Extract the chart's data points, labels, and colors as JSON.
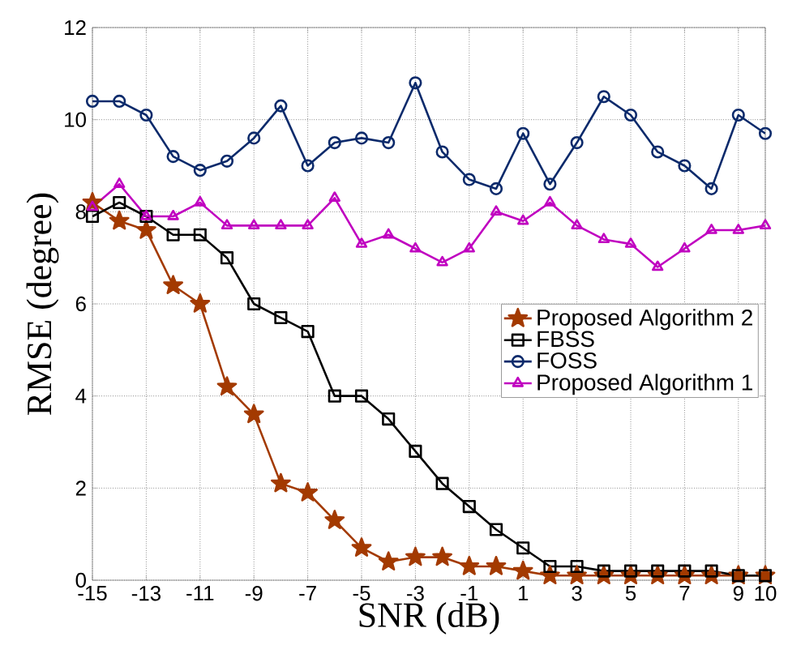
{
  "chart_data": {
    "type": "line",
    "xlabel": "SNR (dB)",
    "ylabel": "RMSE (degree)",
    "x": [
      -15,
      -14,
      -13,
      -12,
      -11,
      -10,
      -9,
      -8,
      -7,
      -6,
      -5,
      -4,
      -3,
      -2,
      -1,
      0,
      1,
      2,
      3,
      4,
      5,
      6,
      7,
      8,
      9,
      10
    ],
    "series": [
      {
        "name": "Proposed  Algorithm 2",
        "color": "#a33a00",
        "marker": "star",
        "values": [
          8.2,
          7.8,
          7.6,
          6.4,
          6.0,
          4.2,
          3.6,
          2.1,
          1.9,
          1.3,
          0.7,
          0.4,
          0.5,
          0.5,
          0.3,
          0.3,
          0.2,
          0.1,
          0.1,
          0.1,
          0.1,
          0.1,
          0.1,
          0.1,
          0.1,
          0.1
        ]
      },
      {
        "name": "FBSS",
        "color": "#000000",
        "marker": "square",
        "values": [
          7.9,
          8.2,
          7.9,
          7.5,
          7.5,
          7.0,
          6.0,
          5.7,
          5.4,
          4.0,
          4.0,
          3.5,
          2.8,
          2.1,
          1.6,
          1.1,
          0.7,
          0.3,
          0.3,
          0.2,
          0.2,
          0.2,
          0.2,
          0.2,
          0.1,
          0.1
        ]
      },
      {
        "name": "FOSS",
        "color": "#0b2a6b",
        "marker": "circle",
        "values": [
          10.4,
          10.4,
          10.1,
          9.2,
          8.9,
          9.1,
          9.6,
          10.3,
          9.0,
          9.5,
          9.6,
          9.5,
          10.8,
          9.3,
          8.7,
          8.5,
          9.7,
          8.6,
          9.5,
          10.5,
          10.1,
          9.3,
          9.0,
          8.5,
          10.1,
          9.7
        ]
      },
      {
        "name": "Proposed  Algorithm 1",
        "color": "#c000c0",
        "marker": "triangle",
        "values": [
          8.1,
          8.6,
          7.9,
          7.9,
          8.2,
          7.7,
          7.7,
          7.7,
          7.7,
          8.3,
          7.3,
          7.5,
          7.2,
          6.9,
          7.2,
          8.0,
          7.8,
          8.2,
          7.7,
          7.4,
          7.3,
          6.8,
          7.2,
          7.6,
          7.6,
          7.7
        ]
      }
    ],
    "xlim": [
      -15,
      10
    ],
    "ylim": [
      0,
      12
    ],
    "xticks": [
      -15,
      -13,
      -11,
      -9,
      -7,
      -5,
      -3,
      -1,
      1,
      3,
      5,
      7,
      9,
      10
    ],
    "yticks": [
      0,
      2,
      4,
      6,
      8,
      10,
      12
    ],
    "grid": true,
    "legend": "right"
  }
}
